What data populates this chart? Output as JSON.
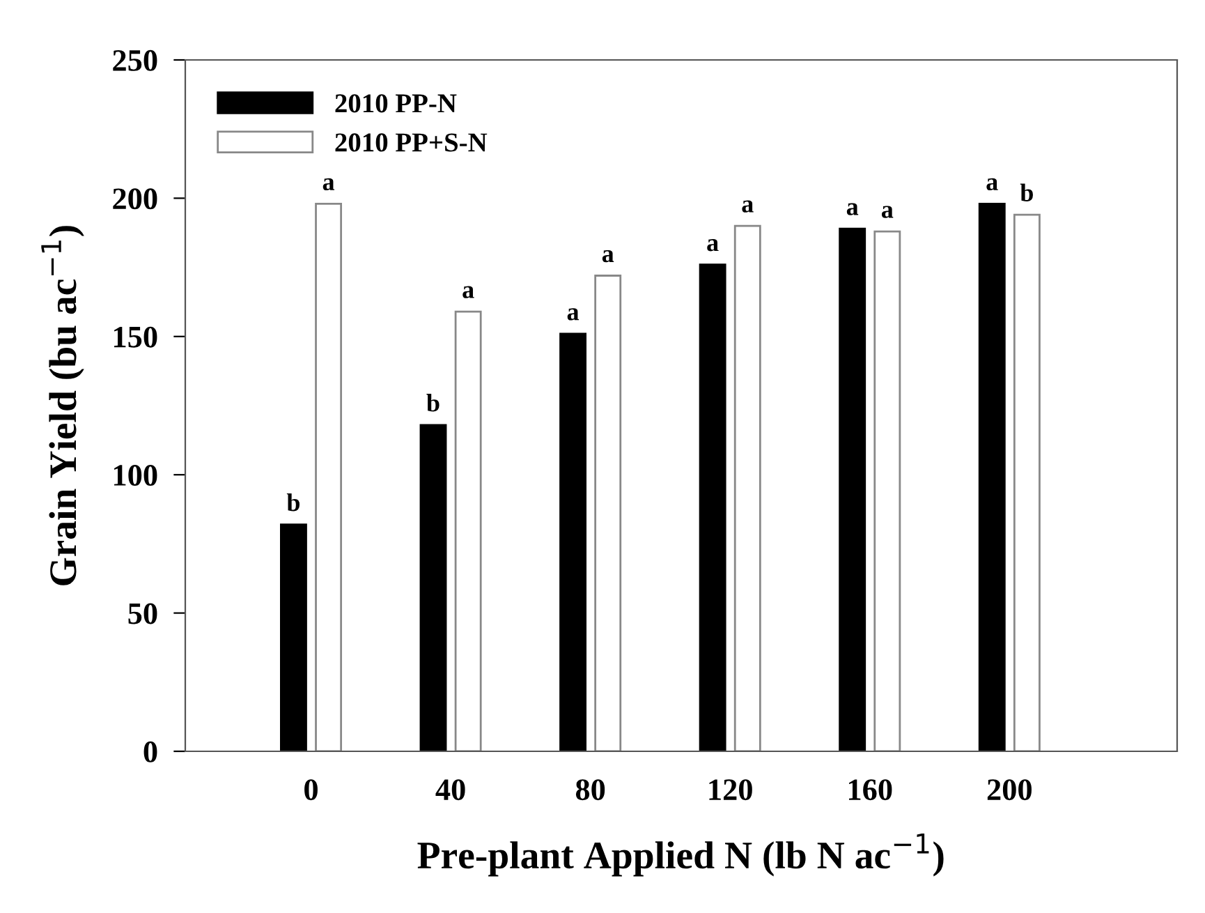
{
  "chart_data": {
    "type": "bar",
    "xlabel": "Pre-plant Applied N (lb N ac$^{−1}$)",
    "ylabel": "Grain Yield (bu ac$^{−1}$)",
    "categories": [
      "0",
      "40",
      "80",
      "120",
      "160",
      "200"
    ],
    "series": [
      {
        "name": "2010 PP-N",
        "color": "#000000",
        "values": [
          82,
          118,
          151,
          176,
          189,
          198
        ]
      },
      {
        "name": "2010 PP+S-N",
        "color": "#ffffff",
        "values": [
          198,
          159,
          172,
          190,
          188,
          194
        ]
      }
    ],
    "ylim": [
      0,
      250
    ],
    "yticks": [
      0,
      50,
      100,
      150,
      200,
      250
    ],
    "grid": false,
    "legend": "top left",
    "annotations": [
      {
        "text": "b",
        "x": "0",
        "y": 82
      },
      {
        "text": "a",
        "x": "0",
        "y": 198
      },
      {
        "text": "b",
        "x": "40",
        "y": 118
      },
      {
        "text": "a",
        "x": "40",
        "y": 159
      },
      {
        "text": "a",
        "x": "80",
        "y": 151
      },
      {
        "text": "a",
        "x": "80",
        "y": 172
      },
      {
        "text": "a",
        "x": "120",
        "y": 176
      },
      {
        "text": "a",
        "x": "120",
        "y": 190
      },
      {
        "text": "a",
        "x": "160",
        "y": 189
      },
      {
        "text": "a",
        "x": "160",
        "y": 188
      },
      {
        "text": "a",
        "x": "200",
        "y": 198
      },
      {
        "text": "b",
        "x": "200",
        "y": 194
      }
    ]
  }
}
